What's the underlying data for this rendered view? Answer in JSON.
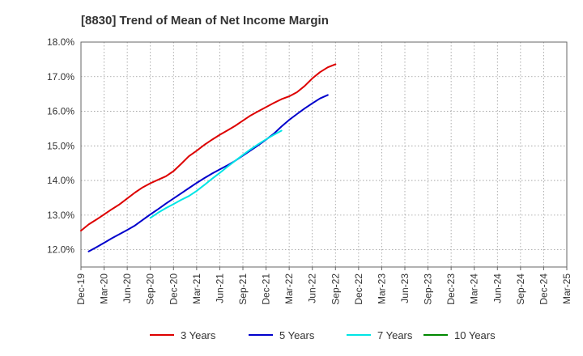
{
  "chart_data": {
    "type": "line",
    "title": "[8830]  Trend of Mean of Net Income Margin",
    "xlabel": "",
    "ylabel": "",
    "x_ticks": [
      "Dec-19",
      "Mar-20",
      "Jun-20",
      "Sep-20",
      "Dec-20",
      "Mar-21",
      "Jun-21",
      "Sep-21",
      "Dec-21",
      "Mar-22",
      "Jun-22",
      "Sep-22",
      "Dec-22",
      "Mar-23",
      "Jun-23",
      "Sep-23",
      "Dec-23",
      "Mar-24",
      "Jun-24",
      "Sep-24",
      "Dec-24",
      "Mar-25"
    ],
    "y_ticks": [
      "12.0%",
      "13.0%",
      "14.0%",
      "15.0%",
      "16.0%",
      "17.0%",
      "18.0%"
    ],
    "ylim": [
      11.5,
      18.0
    ],
    "grid": true,
    "legend_position": "bottom",
    "series": [
      {
        "name": "3 Years",
        "color": "#dd0000",
        "start_index": 0,
        "values": [
          12.55,
          12.73,
          12.87,
          13.02,
          13.17,
          13.31,
          13.48,
          13.65,
          13.8,
          13.92,
          14.02,
          14.12,
          14.27,
          14.48,
          14.7,
          14.86,
          15.03,
          15.18,
          15.32,
          15.45,
          15.58,
          15.73,
          15.88,
          16.0,
          16.12,
          16.24,
          16.35,
          16.43,
          16.55,
          16.73,
          16.95,
          17.13,
          17.27,
          17.36
        ]
      },
      {
        "name": "5 Years",
        "color": "#0000cc",
        "start_index": 1,
        "values": [
          11.95,
          12.07,
          12.2,
          12.33,
          12.45,
          12.57,
          12.7,
          12.86,
          13.02,
          13.17,
          13.33,
          13.48,
          13.63,
          13.78,
          13.93,
          14.07,
          14.2,
          14.32,
          14.44,
          14.57,
          14.72,
          14.87,
          15.02,
          15.18,
          15.35,
          15.56,
          15.75,
          15.92,
          16.08,
          16.23,
          16.37,
          16.47
        ]
      },
      {
        "name": "7 Years",
        "color": "#00e5e5",
        "start_index": 9,
        "values": [
          12.92,
          13.07,
          13.2,
          13.32,
          13.44,
          13.55,
          13.7,
          13.87,
          14.05,
          14.22,
          14.4,
          14.57,
          14.74,
          14.9,
          15.05,
          15.19,
          15.32,
          15.44
        ]
      },
      {
        "name": "10 Years",
        "color": "#008800",
        "start_index": 0,
        "values": []
      }
    ]
  }
}
